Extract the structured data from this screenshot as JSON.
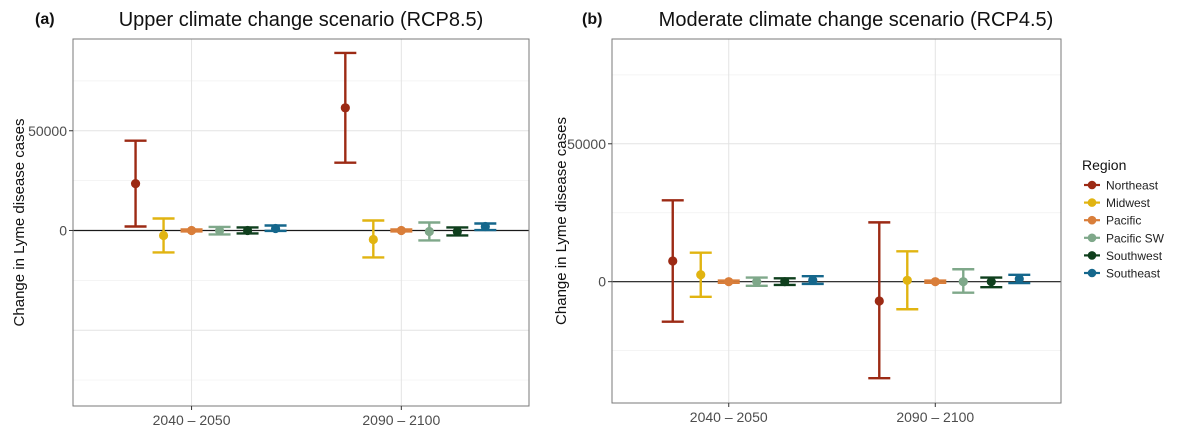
{
  "chart_data": [
    {
      "type": "errorbar",
      "panel_label": "(a)",
      "title": "Upper climate change scenario (RCP8.5)",
      "xlabel": "",
      "ylabel": "Change in Lyme disease cases",
      "categories": [
        "2040 – 2050",
        "2090 – 2100"
      ],
      "ylim": [
        -88000,
        96000
      ],
      "yticks": [
        0,
        50000
      ],
      "grid": true,
      "series": [
        {
          "name": "Northeast",
          "color": "#9C2A14",
          "points": [
            {
              "y": 23500,
              "lo": 2000,
              "hi": 45000
            },
            {
              "y": 61500,
              "lo": 34000,
              "hi": 89000
            }
          ]
        },
        {
          "name": "Midwest",
          "color": "#E1B411",
          "points": [
            {
              "y": -2500,
              "lo": -11000,
              "hi": 6000
            },
            {
              "y": -4500,
              "lo": -13500,
              "hi": 5000
            }
          ]
        },
        {
          "name": "Pacific",
          "color": "#D97E3A",
          "points": [
            {
              "y": 0,
              "lo": -500,
              "hi": 500
            },
            {
              "y": 0,
              "lo": -500,
              "hi": 500
            }
          ]
        },
        {
          "name": "Pacific SW",
          "color": "#7FA88A",
          "points": [
            {
              "y": 0,
              "lo": -2000,
              "hi": 1800
            },
            {
              "y": -500,
              "lo": -5000,
              "hi": 4000
            }
          ]
        },
        {
          "name": "Southwest",
          "color": "#0F3F1D",
          "points": [
            {
              "y": 0,
              "lo": -1500,
              "hi": 1500
            },
            {
              "y": -500,
              "lo": -2500,
              "hi": 1500
            }
          ]
        },
        {
          "name": "Southeast",
          "color": "#15678C",
          "points": [
            {
              "y": 1000,
              "lo": -200,
              "hi": 2500
            },
            {
              "y": 2000,
              "lo": 200,
              "hi": 3500
            }
          ]
        }
      ]
    },
    {
      "type": "errorbar",
      "panel_label": "(b)",
      "title": "Moderate climate change scenario (RCP4.5)",
      "xlabel": "",
      "ylabel": "Change in Lyme disease cases",
      "categories": [
        "2040 – 2050",
        "2090 – 2100"
      ],
      "ylim": [
        -44000,
        88000
      ],
      "yticks": [
        0,
        50000
      ],
      "grid": true,
      "series": [
        {
          "name": "Northeast",
          "color": "#9C2A14",
          "points": [
            {
              "y": 7500,
              "lo": -14500,
              "hi": 29500
            },
            {
              "y": -7000,
              "lo": -35000,
              "hi": 21500
            }
          ]
        },
        {
          "name": "Midwest",
          "color": "#E1B411",
          "points": [
            {
              "y": 2500,
              "lo": -5500,
              "hi": 10500
            },
            {
              "y": 500,
              "lo": -10000,
              "hi": 11000
            }
          ]
        },
        {
          "name": "Pacific",
          "color": "#D97E3A",
          "points": [
            {
              "y": 0,
              "lo": -400,
              "hi": 400
            },
            {
              "y": 0,
              "lo": -400,
              "hi": 400
            }
          ]
        },
        {
          "name": "Pacific SW",
          "color": "#7FA88A",
          "points": [
            {
              "y": 0,
              "lo": -1500,
              "hi": 1500
            },
            {
              "y": 0,
              "lo": -4000,
              "hi": 4500
            }
          ]
        },
        {
          "name": "Southwest",
          "color": "#0F3F1D",
          "points": [
            {
              "y": 0,
              "lo": -1200,
              "hi": 1200
            },
            {
              "y": 0,
              "lo": -2000,
              "hi": 1500
            }
          ]
        },
        {
          "name": "Southeast",
          "color": "#15678C",
          "points": [
            {
              "y": 500,
              "lo": -800,
              "hi": 2000
            },
            {
              "y": 1000,
              "lo": -500,
              "hi": 2500
            }
          ]
        }
      ]
    }
  ],
  "legend": {
    "title": "Region",
    "placement": "right",
    "items": [
      {
        "label": "Northeast",
        "color": "#9C2A14"
      },
      {
        "label": "Midwest",
        "color": "#E1B411"
      },
      {
        "label": "Pacific",
        "color": "#D97E3A"
      },
      {
        "label": "Pacific SW",
        "color": "#7FA88A"
      },
      {
        "label": "Southwest",
        "color": "#0F3F1D"
      },
      {
        "label": "Southeast",
        "color": "#15678C"
      }
    ]
  }
}
